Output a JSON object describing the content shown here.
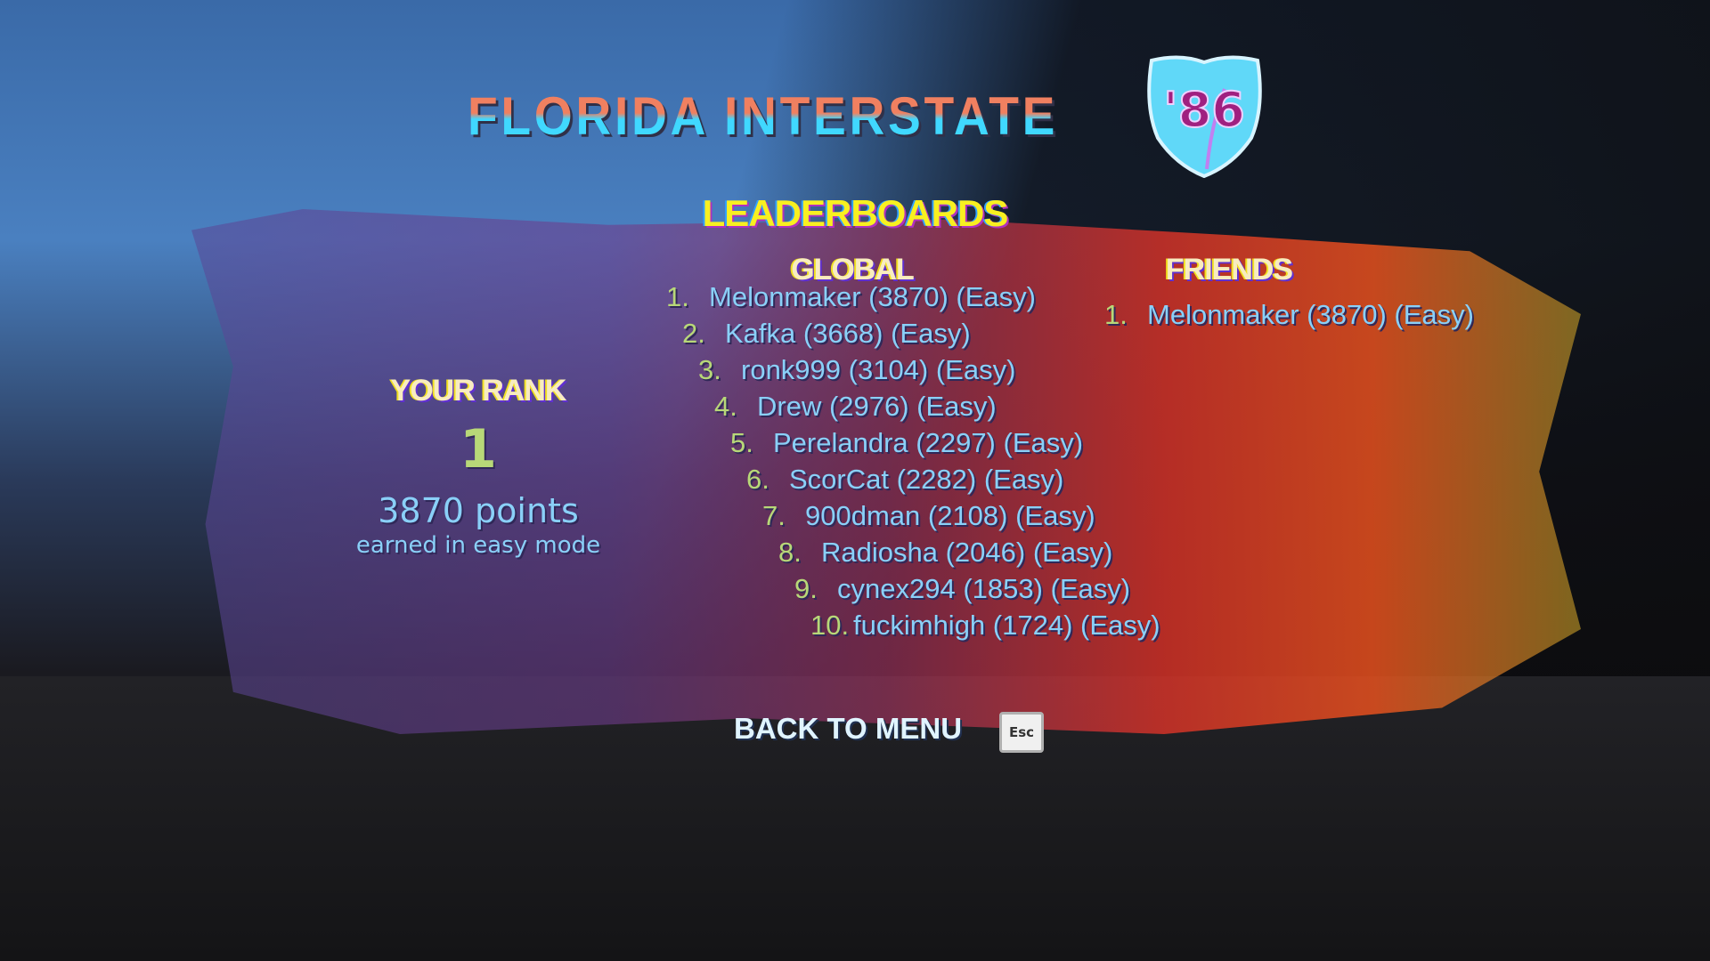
{
  "game_title": "FLORIDA INTERSTATE",
  "logo_badge": "'86",
  "heading": "LEADERBOARDS",
  "global": {
    "title": "GLOBAL",
    "entries": [
      {
        "rank": "1.",
        "text": "Melonmaker (3870) (Easy)"
      },
      {
        "rank": "2.",
        "text": "Kafka (3668) (Easy)"
      },
      {
        "rank": "3.",
        "text": "ronk999 (3104) (Easy)"
      },
      {
        "rank": "4.",
        "text": "Drew (2976) (Easy)"
      },
      {
        "rank": "5.",
        "text": "Perelandra (2297) (Easy)"
      },
      {
        "rank": "6.",
        "text": "ScorCat (2282) (Easy)"
      },
      {
        "rank": "7.",
        "text": "900dman (2108) (Easy)"
      },
      {
        "rank": "8.",
        "text": "Radiosha (2046) (Easy)"
      },
      {
        "rank": "9.",
        "text": "cynex294 (1853) (Easy)"
      },
      {
        "rank": "10.",
        "text": "fuckimhigh (1724) (Easy)"
      }
    ]
  },
  "friends": {
    "title": "FRIENDS",
    "entries": [
      {
        "rank": "1.",
        "text": "Melonmaker (3870) (Easy)"
      }
    ]
  },
  "your_rank": {
    "title": "YOUR RANK",
    "rank": "1",
    "points": "3870 points",
    "subtitle": "earned in easy mode"
  },
  "back_button": {
    "label": "BACK TO MENU",
    "key": "Esc"
  },
  "colors": {
    "heading": "#f8f020",
    "rank_number": "#b8d878",
    "entry_text": "#8ad0f8"
  }
}
